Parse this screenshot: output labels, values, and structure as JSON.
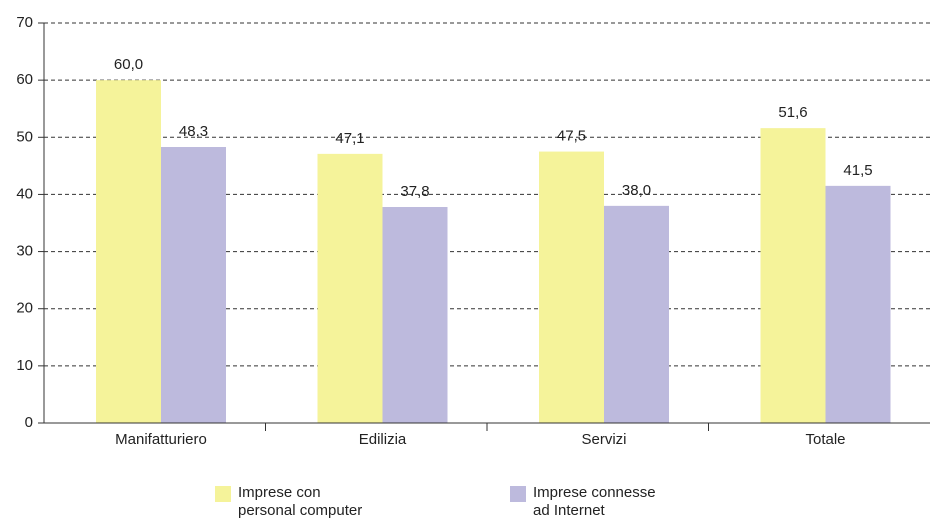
{
  "chart_data": {
    "type": "bar",
    "categories": [
      "Manifatturiero",
      "Edilizia",
      "Servizi",
      "Totale"
    ],
    "series": [
      {
        "name": "Imprese con personal computer",
        "color": "#f5f39a",
        "values": [
          60.0,
          47.1,
          47.5,
          51.6
        ],
        "value_labels": [
          "60,0",
          "47,1",
          "47,5",
          "51,6"
        ]
      },
      {
        "name": "Imprese connesse ad Internet",
        "color": "#bdbadd",
        "values": [
          48.3,
          37.8,
          38.0,
          41.5
        ],
        "value_labels": [
          "48,3",
          "37,8",
          "38,0",
          "41,5"
        ]
      }
    ],
    "ylim": [
      0,
      70
    ],
    "yticks": [
      0,
      10,
      20,
      30,
      40,
      50,
      60,
      70
    ],
    "grid": true
  }
}
